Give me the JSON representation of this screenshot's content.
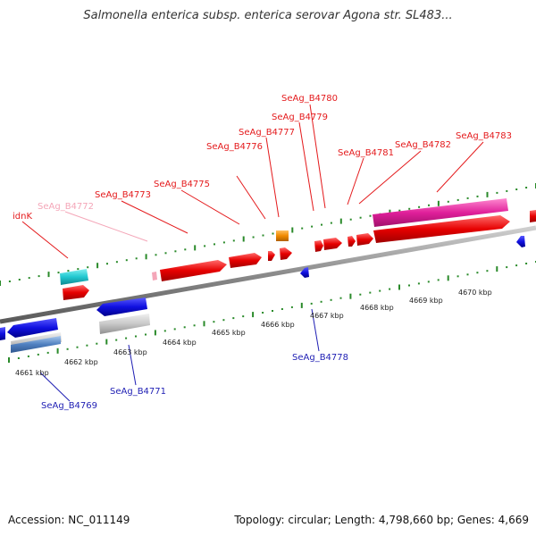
{
  "title": "Salmonella enterica subsp. enterica serovar Agona str. SL483...",
  "footer": {
    "accession": "Accession: NC_011149",
    "stats": "Topology: circular; Length: 4,798,660 bp; Genes: 4,669"
  },
  "colors": {
    "forward_label": "#e41a1c",
    "reverse_label": "#1f1fb4",
    "tick": "#2a8a2a",
    "backbone": "#8a8a8a"
  },
  "ruler": {
    "unit": "kbp",
    "labels": [
      "4661 kbp",
      "4662 kbp",
      "4663 kbp",
      "4664 kbp",
      "4665 kbp",
      "4666 kbp",
      "4667 kbp",
      "4668 kbp",
      "4669 kbp",
      "4670 kbp"
    ]
  },
  "gene_labels_forward": [
    {
      "name": "idnK",
      "color": "#e41a1c"
    },
    {
      "name": "SeAg_B4772",
      "color": "#f4a6b8"
    },
    {
      "name": "SeAg_B4773",
      "color": "#e41a1c"
    },
    {
      "name": "SeAg_B4775",
      "color": "#e41a1c"
    },
    {
      "name": "SeAg_B4776",
      "color": "#e41a1c"
    },
    {
      "name": "SeAg_B4777",
      "color": "#e41a1c"
    },
    {
      "name": "SeAg_B4779",
      "color": "#e41a1c"
    },
    {
      "name": "SeAg_B4780",
      "color": "#e41a1c"
    },
    {
      "name": "SeAg_B4781",
      "color": "#e41a1c"
    },
    {
      "name": "SeAg_B4782",
      "color": "#e41a1c"
    },
    {
      "name": "SeAg_B4783",
      "color": "#e41a1c"
    }
  ],
  "gene_labels_reverse": [
    {
      "name": "SeAg_B4769",
      "color": "#1f1fb4"
    },
    {
      "name": "SeAg_B4771",
      "color": "#1f1fb4"
    },
    {
      "name": "SeAg_B4778",
      "color": "#1f1fb4"
    }
  ]
}
